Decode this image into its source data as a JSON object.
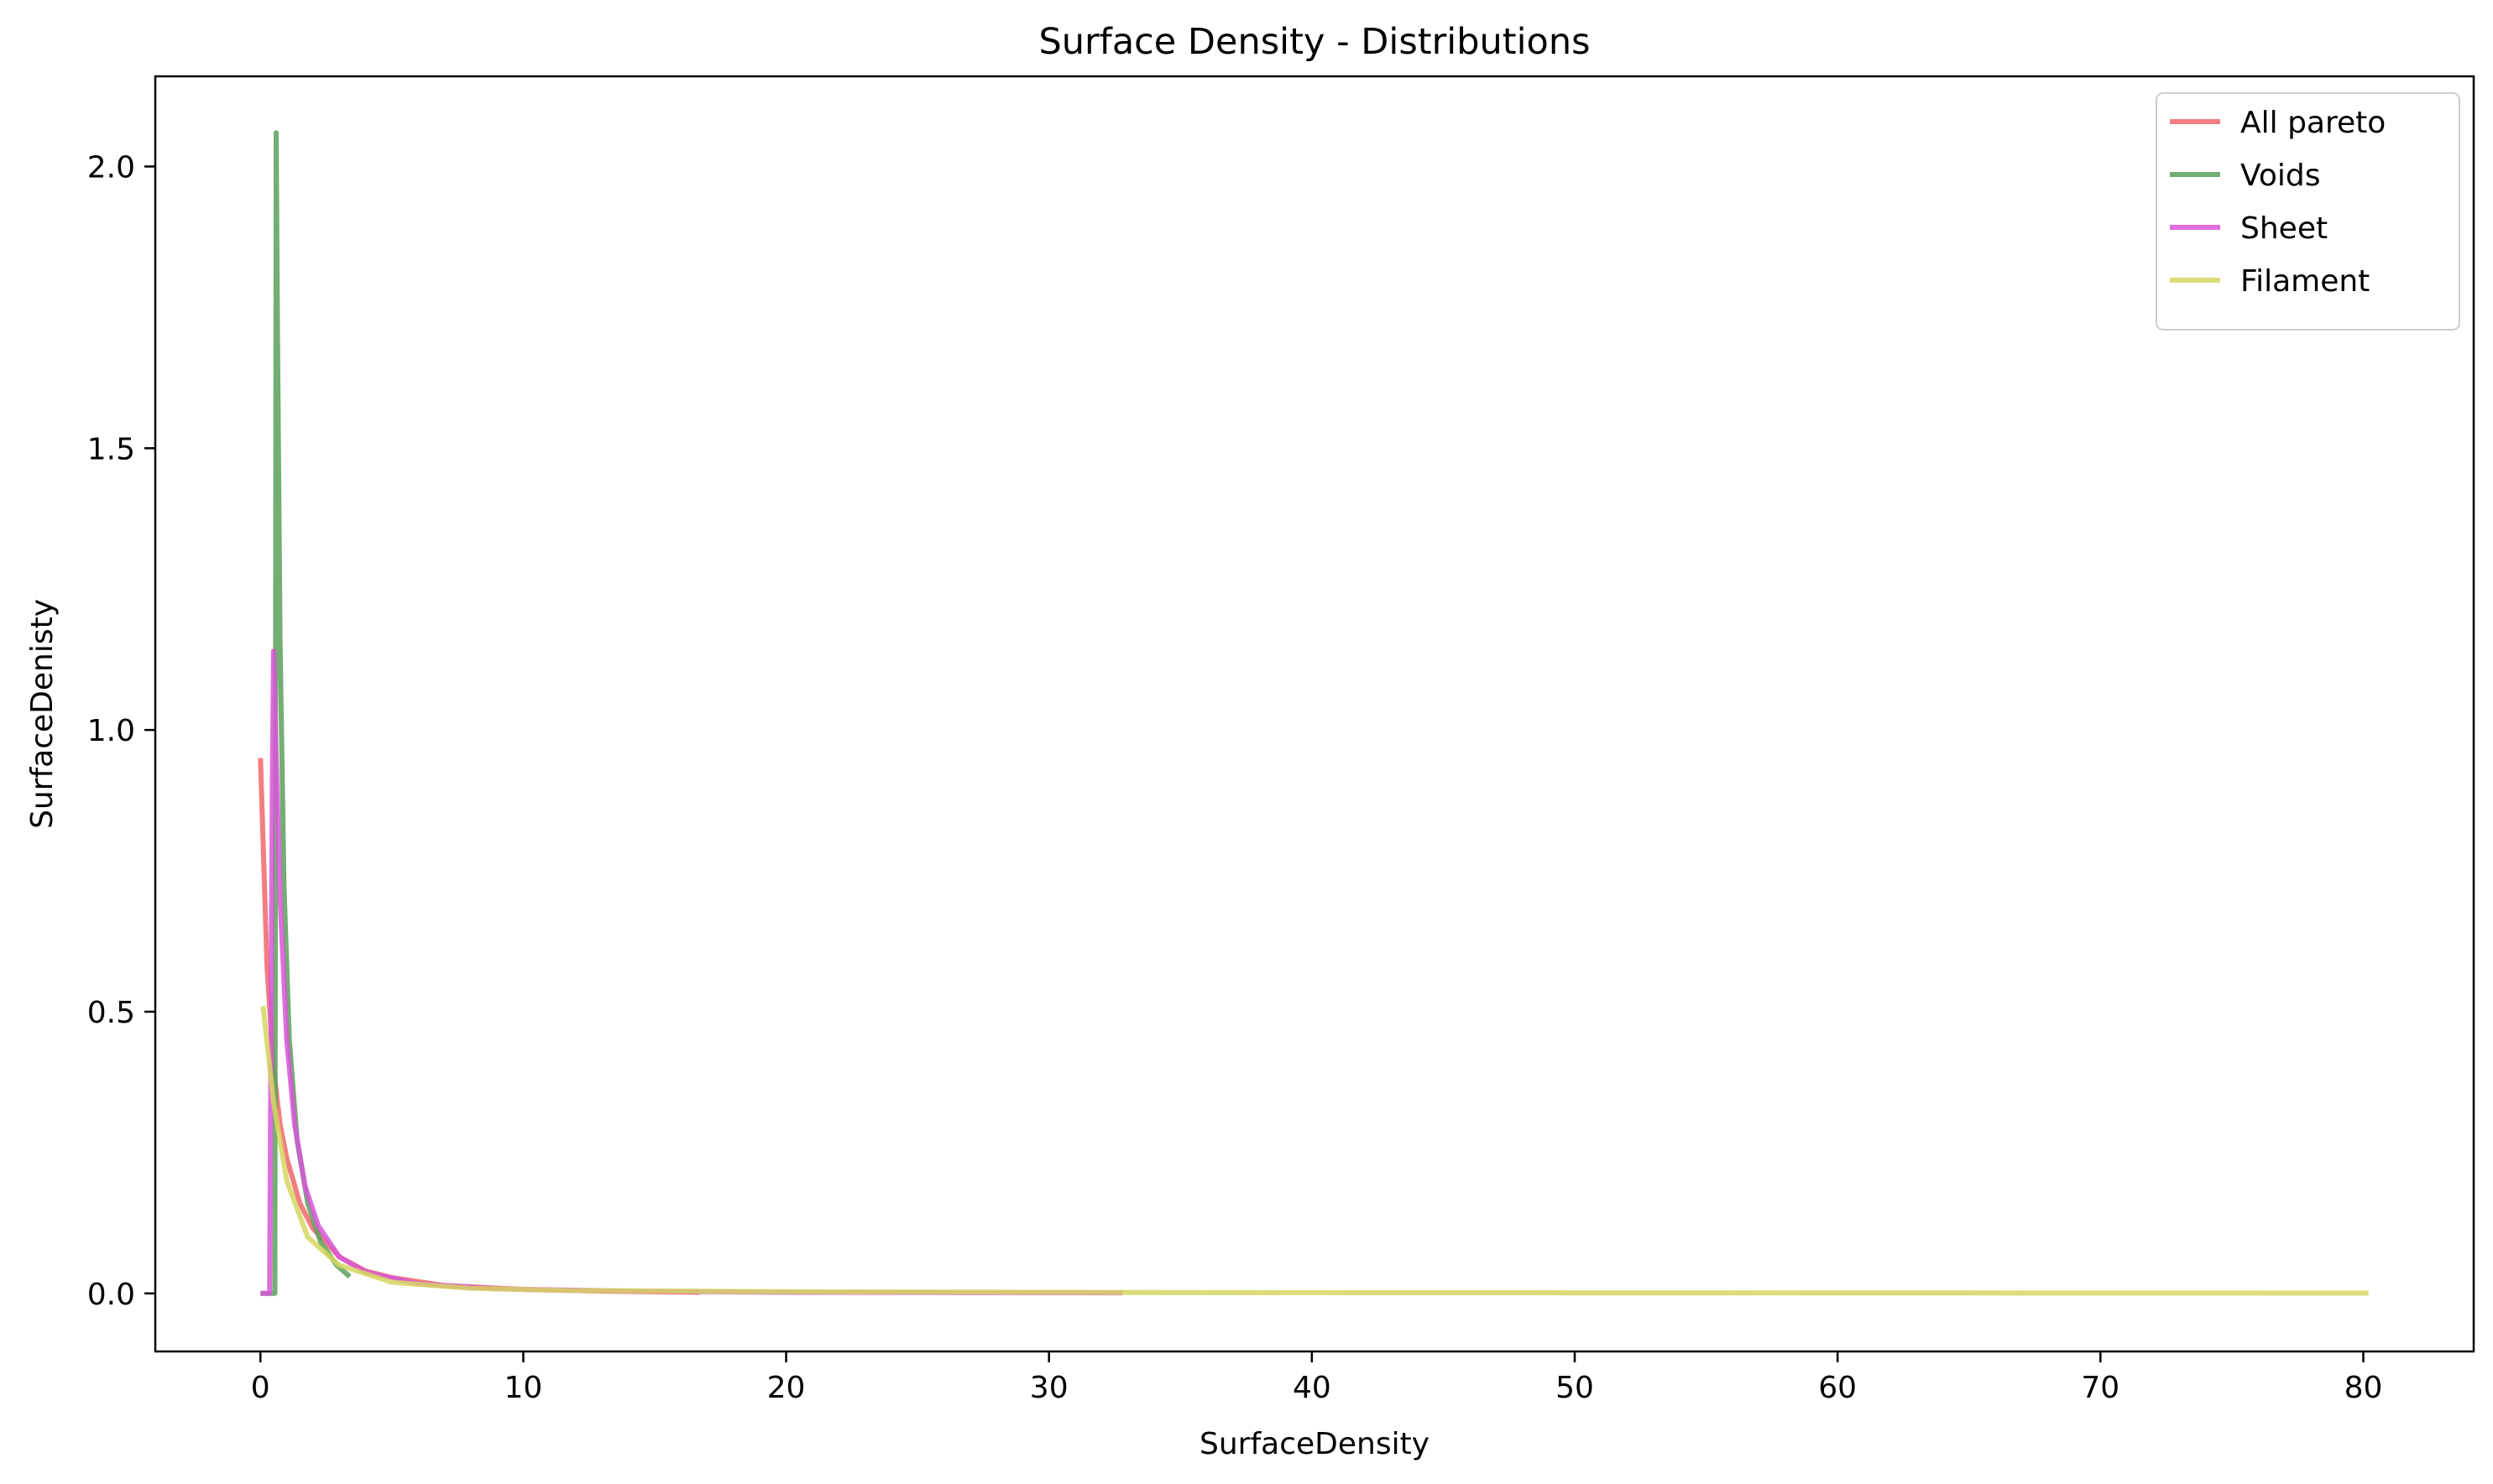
{
  "chart_data": {
    "type": "line",
    "title": "Surface Density  - Distributions",
    "xlabel": "SurfaceDensity",
    "ylabel": "SurfaceDenisty",
    "xlim": [
      -4.0,
      84.2
    ],
    "ylim": [
      -0.103,
      2.16
    ],
    "x_ticks": [
      0,
      10,
      20,
      30,
      40,
      50,
      60,
      70,
      80
    ],
    "x_tick_labels": [
      "0",
      "10",
      "20",
      "30",
      "40",
      "50",
      "60",
      "70",
      "80"
    ],
    "y_ticks": [
      0.0,
      0.5,
      1.0,
      1.5,
      2.0
    ],
    "y_tick_labels": [
      "0.0",
      "0.5",
      "1.0",
      "1.5",
      "2.0"
    ],
    "grid": false,
    "legend_position": "top-right",
    "series": [
      {
        "name": "All pareto",
        "color": "#f0676a",
        "x": [
          0.0,
          0.25,
          0.5,
          0.75,
          1.0,
          1.5,
          2.0,
          3.0,
          4.0,
          5.0,
          7.0,
          10.0,
          13.0,
          16.7
        ],
        "y": [
          0.95,
          0.58,
          0.4,
          0.3,
          0.24,
          0.16,
          0.115,
          0.065,
          0.04,
          0.028,
          0.014,
          0.007,
          0.004,
          0.002
        ]
      },
      {
        "name": "Voids",
        "color": "#5aa05a",
        "x": [
          0.0,
          0.55,
          0.6,
          0.65,
          0.75,
          0.9,
          1.1,
          1.4,
          1.8,
          2.3,
          2.9,
          3.4
        ],
        "y": [
          0.0,
          0.0,
          2.06,
          1.7,
          1.15,
          0.72,
          0.45,
          0.27,
          0.16,
          0.09,
          0.05,
          0.03
        ]
      },
      {
        "name": "Sheet",
        "color": "#d855d8",
        "x": [
          0.0,
          0.35,
          0.45,
          0.5,
          0.6,
          0.75,
          1.0,
          1.3,
          1.7,
          2.2,
          3.0,
          4.0,
          6.0,
          9.0,
          14.0,
          20.0,
          26.0,
          32.8
        ],
        "y": [
          0.0,
          0.0,
          0.9,
          1.14,
          0.95,
          0.7,
          0.45,
          0.3,
          0.19,
          0.12,
          0.065,
          0.038,
          0.017,
          0.008,
          0.004,
          0.002,
          0.0015,
          0.001
        ]
      },
      {
        "name": "Filament",
        "color": "#d6d662",
        "x": [
          0.1,
          0.5,
          1.0,
          1.8,
          3.0,
          5.0,
          8.0,
          12.0,
          20.0,
          35.0,
          50.0,
          65.0,
          80.2
        ],
        "y": [
          0.51,
          0.34,
          0.2,
          0.1,
          0.05,
          0.02,
          0.009,
          0.005,
          0.003,
          0.0015,
          0.001,
          0.0008,
          0.0005
        ]
      }
    ]
  }
}
